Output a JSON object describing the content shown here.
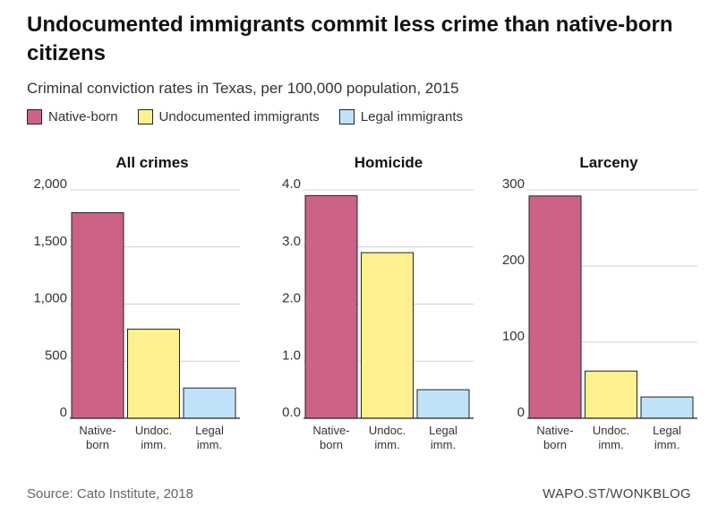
{
  "header": {
    "title": "Undocumented immigrants commit less crime than native-born citizens",
    "subtitle": "Criminal conviction rates in Texas, per 100,000 population, 2015"
  },
  "legend": [
    {
      "label": "Native-born",
      "color": "#cc6387"
    },
    {
      "label": "Undocumented immigrants",
      "color": "#fdf18f"
    },
    {
      "label": "Legal immigrants",
      "color": "#bfe2f9"
    }
  ],
  "footer": {
    "source": "Source: Cato Institute, 2018",
    "credit": "WAPO.ST/WONKBLOG"
  },
  "chart_data": [
    {
      "type": "bar",
      "title": "All crimes",
      "categories": [
        [
          "Native-",
          "born"
        ],
        [
          "Undoc.",
          "imm."
        ],
        [
          "Legal",
          "imm."
        ]
      ],
      "values": [
        1800,
        780,
        265
      ],
      "ylim": [
        0,
        2000
      ],
      "ticks": [
        0,
        500,
        1000,
        1500,
        2000
      ],
      "tick_labels": [
        "0",
        "500",
        "1,000",
        "1,500",
        "2,000"
      ],
      "grid": true
    },
    {
      "type": "bar",
      "title": "Homicide",
      "categories": [
        [
          "Native-",
          "born"
        ],
        [
          "Undoc.",
          "imm."
        ],
        [
          "Legal",
          "imm."
        ]
      ],
      "values": [
        3.9,
        2.9,
        0.5
      ],
      "ylim": [
        0,
        4.0
      ],
      "ticks": [
        0,
        1,
        2,
        3,
        4
      ],
      "tick_labels": [
        "0.0",
        "1.0",
        "2.0",
        "3.0",
        "4.0"
      ],
      "grid": true
    },
    {
      "type": "bar",
      "title": "Larceny",
      "categories": [
        [
          "Native-",
          "born"
        ],
        [
          "Undoc.",
          "imm."
        ],
        [
          "Legal",
          "imm."
        ]
      ],
      "values": [
        292,
        62,
        28
      ],
      "ylim": [
        0,
        300
      ],
      "ticks": [
        0,
        100,
        200,
        300
      ],
      "tick_labels": [
        "0",
        "100",
        "200",
        "300"
      ],
      "grid": true
    }
  ]
}
